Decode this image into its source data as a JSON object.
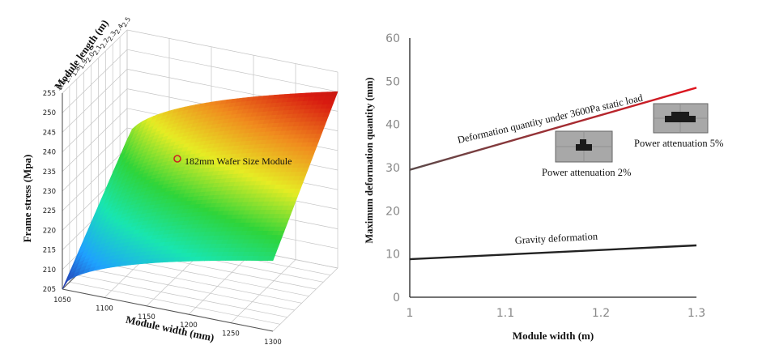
{
  "chart_data": [
    {
      "type": "surface",
      "zlabel": "Frame stress (Mpa)",
      "xlabel": "Module width (mm)",
      "ylabel": "Module length (m)",
      "z_ticks": [
        "205",
        "210",
        "215",
        "220",
        "225",
        "230",
        "235",
        "240",
        "245",
        "250",
        "255"
      ],
      "x_ticks": [
        "1050",
        "1100",
        "1150",
        "1200",
        "1250",
        "1300"
      ],
      "y_ticks": [
        "1.6",
        "1.7",
        "1.8",
        "1.9",
        "2.0",
        "2.1",
        "2.2",
        "2.3",
        "2.4",
        "2.5"
      ],
      "xlim": [
        1050,
        1300
      ],
      "ylim": [
        1.6,
        2.5
      ],
      "zlim": [
        205,
        255
      ],
      "corner_values": [
        {
          "width": 1050,
          "length": 1.6,
          "stress": 205
        },
        {
          "width": 1300,
          "length": 1.6,
          "stress": 223
        },
        {
          "width": 1050,
          "length": 2.5,
          "stress": 227
        },
        {
          "width": 1300,
          "length": 2.5,
          "stress": 250
        }
      ],
      "colormap": [
        "#2a1f99",
        "#1fa0ff",
        "#19e6b0",
        "#2ed43a",
        "#e6ec24",
        "#f08a1e",
        "#d81a10",
        "#a01012"
      ],
      "annotation": {
        "label": "182mm Wafer Size Module",
        "width": 1150,
        "length": 2.0,
        "stress": 238
      },
      "marker_color": "#cc2222",
      "grid": true
    },
    {
      "type": "line",
      "xlabel": "Module width (m)",
      "ylabel": "Maximum deformation quantity (mm)",
      "xlim": [
        1,
        1.3
      ],
      "ylim": [
        0,
        60
      ],
      "x_ticks": [
        "1",
        "1.1",
        "1.2",
        "1.3"
      ],
      "y_ticks": [
        "0",
        "10",
        "20",
        "30",
        "40",
        "50",
        "60"
      ],
      "grid": false,
      "series": [
        {
          "name": "Deformation quantity under 3600Pa static load",
          "x": [
            1,
            1.3
          ],
          "values": [
            29.5,
            48.5
          ],
          "color_start": "#5a4a4a",
          "color_end": "#e0141e"
        },
        {
          "name": "Gravity deformation",
          "x": [
            1,
            1.3
          ],
          "values": [
            8.8,
            12
          ],
          "color": "#222222"
        }
      ],
      "insets": [
        {
          "label": "Power attenuation 2%",
          "x": 1.16,
          "y": 31
        },
        {
          "label": "Power attenuation 5%",
          "x": 1.29,
          "y": 38
        }
      ]
    }
  ]
}
